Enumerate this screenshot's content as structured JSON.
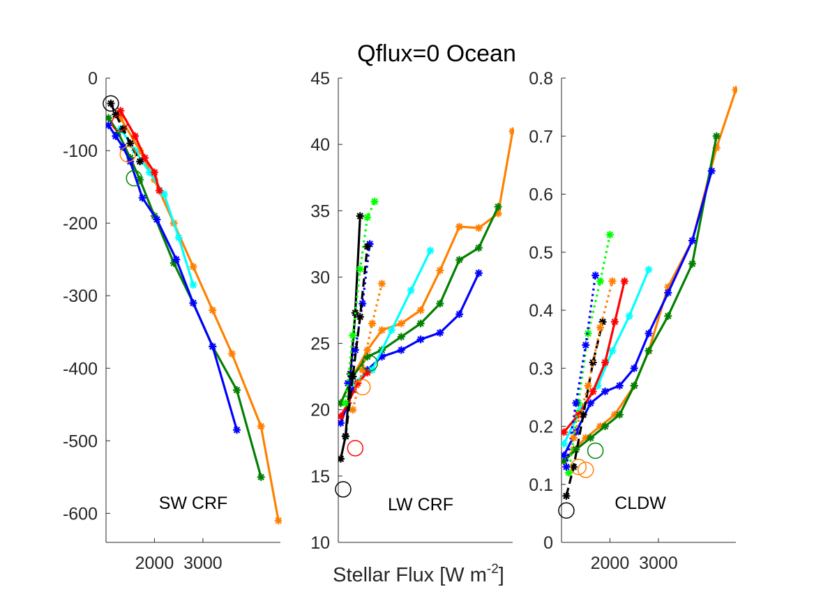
{
  "figure": {
    "title": "Qflux=0 Ocean",
    "xlabel_main": "Stellar Flux [W m",
    "xlabel_sup": "-2",
    "xlabel_close": "]"
  },
  "chart_data": [
    {
      "type": "line",
      "panel_label": "SW CRF",
      "xlim": [
        1000,
        4600
      ],
      "ylim": [
        -640,
        0
      ],
      "xticks": [
        2000,
        3000
      ],
      "yticks": [
        0,
        -100,
        -200,
        -300,
        -400,
        -500,
        -600
      ],
      "colors": {
        "black": "#000000",
        "red": "#ff0000",
        "orange": "#ff8000",
        "lime": "#00ff00",
        "cyan": "#00ffff",
        "green": "#008000",
        "blue": "#0000ff"
      },
      "series": [
        {
          "name": "orange",
          "color": "#ff8000",
          "style": "solid",
          "x": [
            1300,
            1700,
            2000,
            2400,
            2800,
            3200,
            3600,
            4200,
            4560
          ],
          "y": [
            -55,
            -100,
            -140,
            -200,
            -260,
            -320,
            -380,
            -480,
            -610
          ]
        },
        {
          "name": "green",
          "color": "#008000",
          "style": "solid",
          "x": [
            1050,
            1250,
            1500,
            1700,
            2000,
            2400,
            2800,
            3200,
            3700,
            4200
          ],
          "y": [
            -55,
            -75,
            -110,
            -140,
            -190,
            -255,
            -310,
            -370,
            -430,
            -550
          ]
        },
        {
          "name": "blue",
          "color": "#0000ff",
          "style": "solid",
          "x": [
            1050,
            1200,
            1350,
            1500,
            1750,
            2050,
            2450,
            2800,
            3200,
            3700
          ],
          "y": [
            -65,
            -80,
            -95,
            -115,
            -165,
            -195,
            -250,
            -310,
            -370,
            -485
          ]
        },
        {
          "name": "cyan",
          "color": "#00ffff",
          "style": "solid",
          "x": [
            1300,
            1600,
            1900,
            2200,
            2500,
            2800
          ],
          "y": [
            -70,
            -100,
            -130,
            -160,
            -220,
            -285
          ]
        },
        {
          "name": "red",
          "color": "#ff0000",
          "style": "solid",
          "x": [
            1300,
            1600,
            1800,
            2000,
            2100
          ],
          "y": [
            -45,
            -80,
            -110,
            -130,
            -155
          ]
        },
        {
          "name": "black",
          "color": "#000000",
          "style": "dashed",
          "x": [
            1100,
            1200,
            1350,
            1500,
            1700
          ],
          "y": [
            -35,
            -50,
            -70,
            -90,
            -115
          ]
        }
      ],
      "circles": [
        {
          "color": "#000000",
          "x": 1100,
          "y": -35
        },
        {
          "color": "#ff0000",
          "x": 1280,
          "y": -62
        },
        {
          "color": "#ff8000",
          "x": 1450,
          "y": -105
        },
        {
          "color": "#008000",
          "x": 1580,
          "y": -138
        }
      ]
    },
    {
      "type": "line",
      "panel_label": "LW CRF",
      "xlim": [
        1000,
        4600
      ],
      "ylim": [
        10,
        45
      ],
      "xticks": [],
      "yticks": [
        10,
        15,
        20,
        25,
        30,
        35,
        40,
        45
      ],
      "series": [
        {
          "name": "orange",
          "color": "#ff8000",
          "style": "solid",
          "x": [
            1050,
            1300,
            1600,
            1900,
            2300,
            2700,
            3100,
            3500,
            3900,
            4300,
            4600
          ],
          "y": [
            20.5,
            22.5,
            24.5,
            26,
            26.5,
            27.5,
            30.5,
            33.8,
            33.7,
            34.8,
            41
          ]
        },
        {
          "name": "green",
          "color": "#008000",
          "style": "solid",
          "x": [
            1050,
            1300,
            1600,
            1900,
            2300,
            2700,
            3100,
            3500,
            3900,
            4300
          ],
          "y": [
            20.5,
            22.5,
            24,
            24.5,
            25.5,
            26.5,
            28,
            31.3,
            32.2,
            35.3
          ]
        },
        {
          "name": "blue",
          "color": "#0000ff",
          "style": "solid",
          "x": [
            1050,
            1300,
            1600,
            1900,
            2300,
            2700,
            3100,
            3500,
            3900
          ],
          "y": [
            19,
            21.5,
            23,
            24,
            24.5,
            25.3,
            25.8,
            27.2,
            30.3
          ]
        },
        {
          "name": "cyan",
          "color": "#00ffff",
          "style": "solid",
          "x": [
            1300,
            1700,
            2100,
            2500,
            2900
          ],
          "y": [
            22,
            23,
            26,
            29,
            32
          ]
        },
        {
          "name": "red",
          "color": "#ff0000",
          "style": "solid",
          "x": [
            1050,
            1200,
            1400,
            1600
          ],
          "y": [
            19.5,
            20.5,
            22,
            22.8
          ]
        },
        {
          "name": "black",
          "color": "#000000",
          "style": "solid",
          "x": [
            1050,
            1150,
            1250,
            1350,
            1450
          ],
          "y": [
            16.3,
            18,
            22.7,
            27.3,
            34.6
          ]
        },
        {
          "name": "blue-dotted",
          "color": "#0000ff",
          "style": "dotted",
          "x": [
            1200,
            1350,
            1500,
            1650
          ],
          "y": [
            22,
            24.5,
            28,
            32.5
          ]
        },
        {
          "name": "lime-dotted",
          "color": "#00ff00",
          "style": "dotted",
          "x": [
            1150,
            1300,
            1450,
            1600,
            1750
          ],
          "y": [
            20.5,
            25.6,
            30.6,
            34.5,
            35.7
          ]
        },
        {
          "name": "orange-dotted",
          "color": "#ff8000",
          "style": "dotted",
          "x": [
            1300,
            1500,
            1700,
            1900
          ],
          "y": [
            20,
            23,
            26.5,
            29.5
          ]
        },
        {
          "name": "black-dashed",
          "color": "#000000",
          "style": "dashed",
          "x": [
            1150,
            1300,
            1450,
            1600
          ],
          "y": [
            18,
            22.5,
            27,
            32.3
          ]
        }
      ],
      "circles": [
        {
          "color": "#000000",
          "x": 1100,
          "y": 14
        },
        {
          "color": "#ff0000",
          "x": 1350,
          "y": 17.1
        },
        {
          "color": "#ff8000",
          "x": 1500,
          "y": 21.7
        },
        {
          "color": "#008000",
          "x": 1650,
          "y": 23.5
        }
      ]
    },
    {
      "type": "line",
      "panel_label": "CLDW",
      "xlim": [
        1000,
        4600
      ],
      "ylim": [
        0,
        0.8
      ],
      "xticks": [
        2000,
        3000
      ],
      "yticks": [
        0,
        0.1,
        0.2,
        0.3,
        0.4,
        0.5,
        0.6,
        0.7,
        0.8
      ],
      "series": [
        {
          "name": "orange",
          "color": "#ff8000",
          "style": "solid",
          "x": [
            1050,
            1250,
            1500,
            1800,
            2100,
            2500,
            2800,
            3200,
            3700,
            4200,
            4600
          ],
          "y": [
            0.14,
            0.16,
            0.18,
            0.2,
            0.22,
            0.27,
            0.33,
            0.44,
            0.52,
            0.68,
            0.78
          ]
        },
        {
          "name": "green",
          "color": "#008000",
          "style": "solid",
          "x": [
            1050,
            1300,
            1600,
            1900,
            2200,
            2500,
            2800,
            3200,
            3700,
            4200
          ],
          "y": [
            0.14,
            0.16,
            0.18,
            0.2,
            0.22,
            0.27,
            0.33,
            0.39,
            0.48,
            0.7
          ]
        },
        {
          "name": "blue",
          "color": "#0000ff",
          "style": "solid",
          "x": [
            1050,
            1300,
            1600,
            1900,
            2200,
            2500,
            2800,
            3200,
            3700,
            4100
          ],
          "y": [
            0.15,
            0.19,
            0.24,
            0.26,
            0.27,
            0.3,
            0.36,
            0.43,
            0.52,
            0.64
          ]
        },
        {
          "name": "cyan",
          "color": "#00ffff",
          "style": "solid",
          "x": [
            1050,
            1400,
            1750,
            2050,
            2400,
            2800
          ],
          "y": [
            0.17,
            0.23,
            0.27,
            0.33,
            0.39,
            0.47
          ]
        },
        {
          "name": "red",
          "color": "#ff0000",
          "style": "solid",
          "x": [
            1050,
            1350,
            1650,
            1900,
            2100,
            2300
          ],
          "y": [
            0.19,
            0.22,
            0.26,
            0.31,
            0.38,
            0.45
          ]
        },
        {
          "name": "black-dashed",
          "color": "#000000",
          "style": "dashed",
          "x": [
            1100,
            1250,
            1450,
            1650,
            1850
          ],
          "y": [
            0.08,
            0.13,
            0.22,
            0.31,
            0.38
          ]
        },
        {
          "name": "lime-dotted",
          "color": "#00ff00",
          "style": "dotted",
          "x": [
            1150,
            1350,
            1550,
            1800,
            2000
          ],
          "y": [
            0.12,
            0.24,
            0.36,
            0.45,
            0.53
          ]
        },
        {
          "name": "blue-dotted",
          "color": "#0000ff",
          "style": "dotted",
          "x": [
            1100,
            1300,
            1500,
            1700
          ],
          "y": [
            0.13,
            0.24,
            0.34,
            0.46
          ]
        },
        {
          "name": "orange-dotted",
          "color": "#ff8000",
          "style": "dotted",
          "x": [
            1250,
            1550,
            1800,
            2050
          ],
          "y": [
            0.18,
            0.27,
            0.37,
            0.45
          ]
        }
      ],
      "circles": [
        {
          "color": "#000000",
          "x": 1100,
          "y": 0.055
        },
        {
          "color": "#ff8000",
          "x": 1350,
          "y": 0.13
        },
        {
          "color": "#ff8000",
          "x": 1500,
          "y": 0.125
        },
        {
          "color": "#008000",
          "x": 1700,
          "y": 0.158
        }
      ]
    }
  ]
}
